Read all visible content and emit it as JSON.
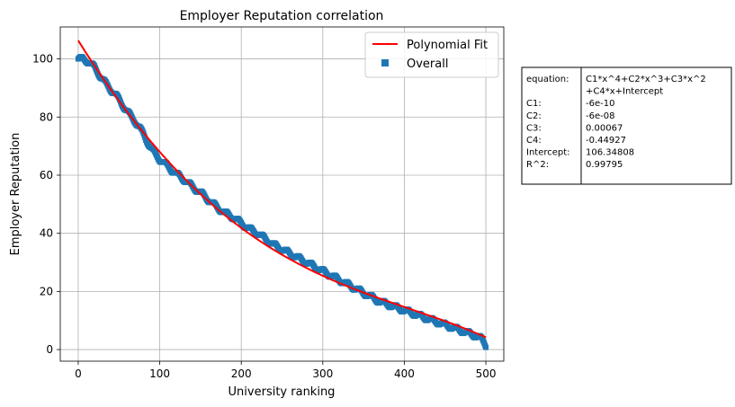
{
  "chart_data": {
    "type": "scatter",
    "title": "Employer Reputation correlation",
    "xlabel": "University ranking",
    "ylabel": "Employer Reputation",
    "xlim": [
      -22,
      522
    ],
    "ylim": [
      -4,
      111
    ],
    "xticks": [
      0,
      100,
      200,
      300,
      400,
      500
    ],
    "yticks": [
      0,
      20,
      40,
      60,
      80,
      100
    ],
    "grid": true,
    "legend_position": "top-right",
    "series": [
      {
        "name": "Polynomial Fit",
        "kind": "line",
        "color": "#ff0000",
        "coefficients": {
          "C1": -6e-10,
          "C2": -6e-08,
          "C3": 0.00067,
          "C4": -0.44927,
          "Intercept": 106.34808
        },
        "x_range": [
          0,
          500
        ]
      },
      {
        "name": "Overall",
        "kind": "scatter",
        "color": "#1f77b4",
        "x": [
          0,
          5,
          10,
          15,
          20,
          25,
          30,
          35,
          40,
          45,
          50,
          55,
          60,
          65,
          70,
          75,
          80,
          85,
          90,
          95,
          100,
          110,
          120,
          130,
          140,
          150,
          160,
          170,
          180,
          190,
          200,
          210,
          220,
          230,
          240,
          250,
          260,
          270,
          280,
          290,
          300,
          310,
          320,
          330,
          340,
          350,
          360,
          370,
          380,
          390,
          400,
          410,
          420,
          430,
          440,
          450,
          460,
          470,
          480,
          490,
          495,
          498,
          500
        ],
        "y": [
          100,
          100,
          99.5,
          98.5,
          97,
          95,
          93,
          91,
          89.5,
          88,
          86,
          84,
          82,
          80,
          78.5,
          76.5,
          74,
          71.5,
          69,
          67,
          65.5,
          63,
          60.5,
          58.5,
          56,
          54,
          51.5,
          49,
          47,
          45.5,
          43.5,
          41.5,
          40,
          38,
          36,
          34.5,
          33,
          31.5,
          30,
          28.5,
          27,
          25.5,
          24,
          22.5,
          21,
          19.5,
          18,
          16.5,
          15.5,
          14.5,
          13.5,
          12.5,
          11.5,
          10.5,
          9.5,
          8.5,
          7.5,
          6.5,
          5.5,
          4.5,
          3.5,
          2.5,
          1.5
        ]
      }
    ]
  },
  "fit_table": {
    "rows": [
      {
        "label": "equation:",
        "value": "C1*x^4+C2*x^3+C3*x^2"
      },
      {
        "label": "",
        "value": "+C4*x+Intercept"
      },
      {
        "label": "C1:",
        "value": "-6e-10"
      },
      {
        "label": "C2:",
        "value": "-6e-08"
      },
      {
        "label": "C3:",
        "value": "0.00067"
      },
      {
        "label": "C4:",
        "value": "-0.44927"
      },
      {
        "label": "Intercept:",
        "value": "106.34808"
      },
      {
        "label": "R^2:",
        "value": "0.99795"
      }
    ]
  }
}
